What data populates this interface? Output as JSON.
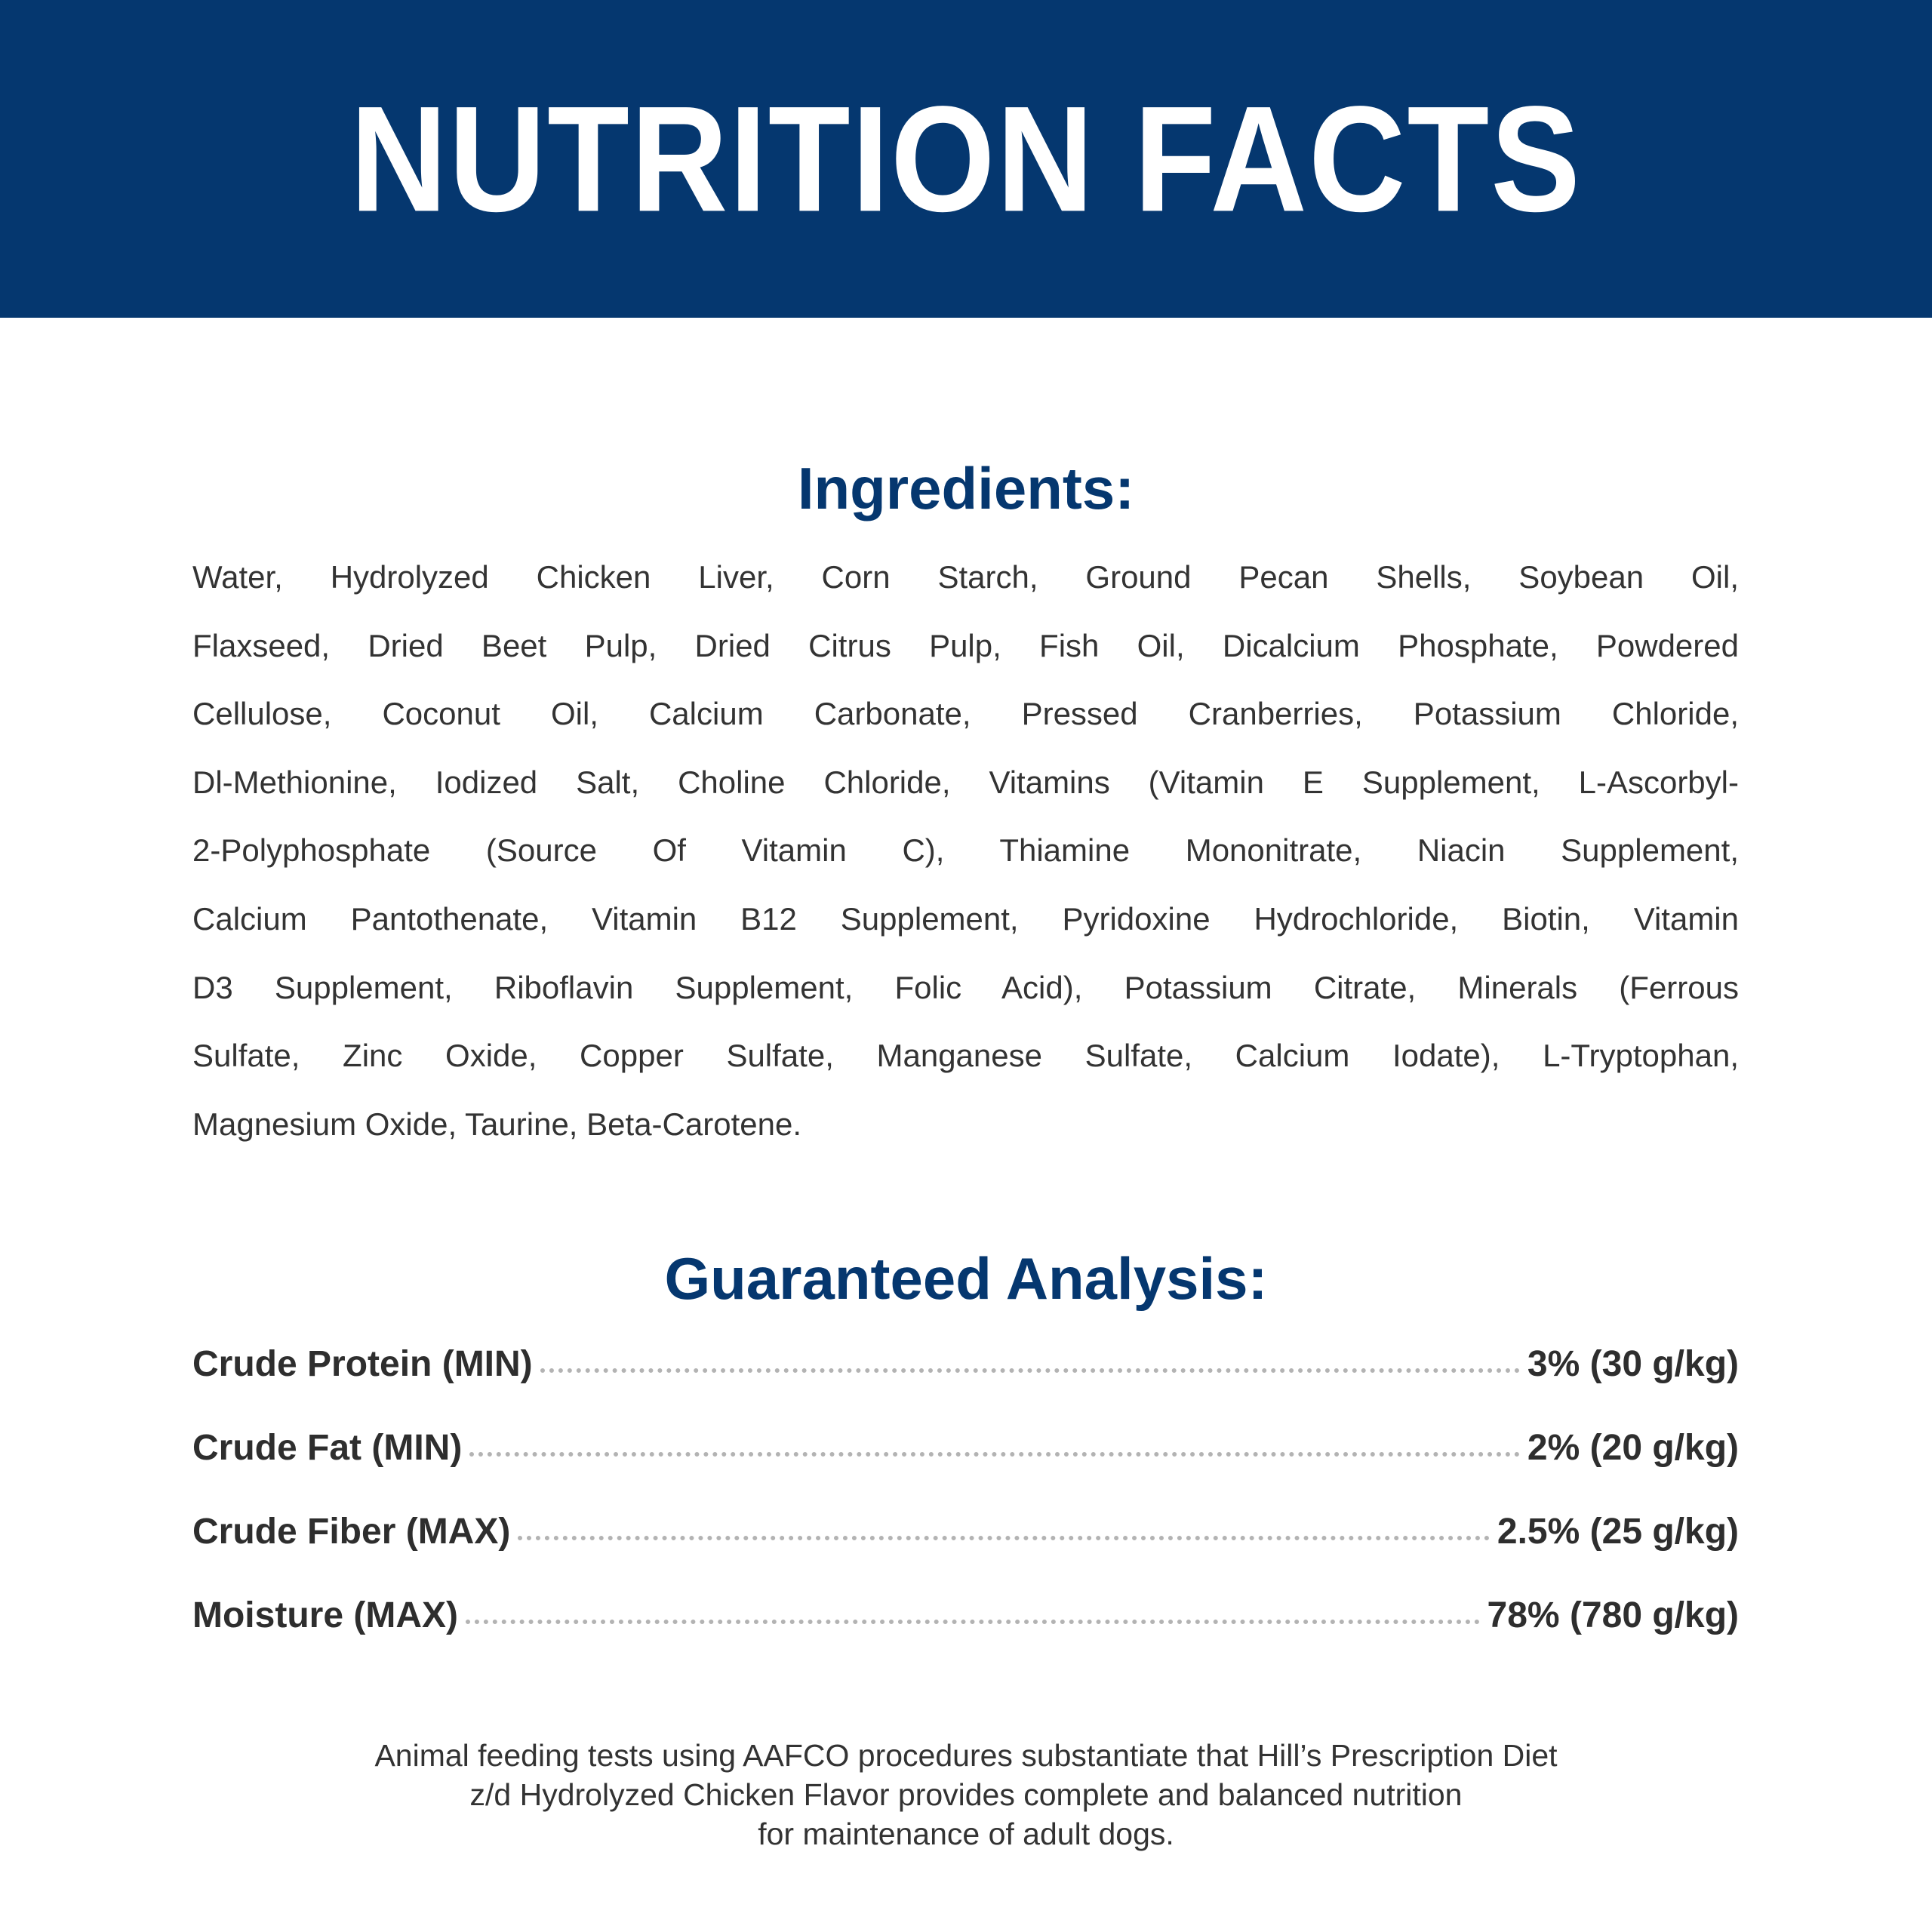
{
  "header": {
    "title": "NUTRITION FACTS",
    "background": "#05376f"
  },
  "ingredients": {
    "title": "Ingredients:",
    "lines": [
      "Water, Hydrolyzed Chicken Liver, Corn Starch, Ground Pecan Shells, Soybean Oil,",
      "Flaxseed, Dried Beet Pulp, Dried Citrus Pulp, Fish Oil, Dicalcium Phosphate, Powdered",
      "Cellulose, Coconut Oil, Calcium Carbonate, Pressed Cranberries, Potassium Chloride,",
      "Dl-Methionine, Iodized Salt, Choline Chloride, Vitamins (Vitamin E Supplement, L-Ascorbyl-",
      "2-Polyphosphate (Source Of Vitamin C), Thiamine Mononitrate, Niacin Supplement,",
      "Calcium Pantothenate, Vitamin B12 Supplement, Pyridoxine Hydrochloride, Biotin, Vitamin",
      "D3 Supplement, Riboflavin Supplement, Folic Acid), Potassium Citrate, Minerals (Ferrous",
      "Sulfate, Zinc Oxide, Copper Sulfate, Manganese Sulfate, Calcium Iodate), L-Tryptophan,",
      "Magnesium Oxide, Taurine, Beta-Carotene."
    ]
  },
  "analysis": {
    "title": "Guaranteed Analysis:",
    "rows": [
      {
        "label": "Crude Protein (MIN)",
        "value": "3% (30 g/kg)"
      },
      {
        "label": "Crude Fat (MIN)",
        "value": "2% (20 g/kg)"
      },
      {
        "label": "Crude Fiber (MAX)",
        "value": "2.5% (25 g/kg)"
      },
      {
        "label": "Moisture (MAX)",
        "value": "78% (780 g/kg)"
      }
    ]
  },
  "footer": {
    "lines": [
      "Animal feeding tests using AAFCO procedures substantiate that Hill’s Prescription Diet",
      "z/d Hydrolyzed Chicken Flavor provides complete and balanced nutrition",
      "for maintenance of adult dogs."
    ]
  }
}
